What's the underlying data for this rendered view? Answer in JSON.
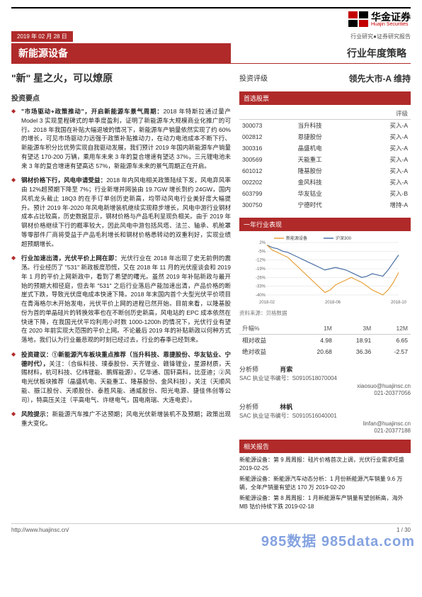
{
  "header": {
    "logo_cn": "华金证券",
    "logo_en": "Huajin Securities",
    "logo_color1": "#c40000",
    "logo_color2": "#000000"
  },
  "datebar": {
    "date": "2019 年 02 月 28 日",
    "sub": "行业研究●证券研究报告"
  },
  "titlebar": {
    "left": "新能源设备",
    "right": "行业年度策略"
  },
  "big_title": "\"新\" 星之火，可以燎原",
  "section_label": "投资要点",
  "points": [
    {
      "bold": "\"市场驱动+政策推动\"，开启新能源车景气周期：",
      "text": "2018 年特斯拉通过量产 Model 3 实现里程碑式的单季度盈利，证明了新能源车大规模商业化推广的可行。2018 年我国在补贴大幅退坡的情况下，新能源车产销量依然实现了约 60%的增长，可见市场驱动力远强于政策补贴推动力，在动力电池成本不断下行、新能源车积分比优势实现自我驱动发展，我们预计 2019 年国内新能源车产销量有望达 170-200 万辆，乘用车未来 3 年的复合增速有望达 37%，三元锂电池未来 3 年的复合增速有望高达 57%，新能源车未来的景气周期正在开启。"
    },
    {
      "bold": "钢材价格下行，风电申请受益：",
      "text": "2018 年内风电相关政策陆续下发，风电弃风率由 12%超预期下降至 7%；行业新增并网装由 19.7GW 增长到约 24GW，国内风机龙头截止 18Q3 的在手订单创历史新高，均带动风电行业美好度大幅提升。预计 2019 年-2020 年风电新增装机继续实现稳步增长，风电中游行业钢材成本占比较高，历史数据显示，钢材价格与产品毛利呈现负相关。由于 2019 年钢材价格继续下行的概率较大，因此风电中游包括风塔、法兰、轴承、机舱罩等零部件厂商将受益于产品毛利增长和钢材价格悉转动的双重利好，实现业绩超预期增长。"
    },
    {
      "bold": "行业加速出清，光伏平价上网在即：",
      "text": "光伏行业在 2018 年出现了史无前例的震荡。行业经历了 \"531\" 新政板度恐慌，又在 2018 年 11 月的光伏座谈会和 2019 年 1 月的平价上网新政中，看到了希望的曙光。虽然 2019 年补贴新政与最开始的预期大相径庭，但去年 \"531\" 之后行业落后产能加速出清，产品价格的断崖式下跌，导致光伏度电成本快速下降。2018 年末国内首个大型光伏平价项目在青海格尔木开始发电，光伏平价上网的进程已然开始。目前来看，以隆基股份为首的单晶硅片的转换效率也在不断创历史新高，风电站的 EPC 成本依然在快速下降，在我国光伏平均利用小时数 1000-1200h 的情况下，光伏行业有望在 2020 年前实现大范围的平价上网。不论最后 2019 年的补贴新政以何种方式落地，我们认为行业最悲观的时刻已经过去，行业的春季已经到来。"
    },
    {
      "bold": "投资建议：①新能源汽车板块重点推荐（当升科技、恩捷股份、华友钴业、宁德时代），",
      "text": "关注：（合纵科技、璞泰股份、天齐锂业、赣锋锂业，星源材质，天赐材料，杭可科技、亿纬锂能、鹏辉能源），亿华通、国轩高科，比亚迪；②风电光伏板块推荐（晶盛机电、天能重工、隆基股份、金风科技），关注（天顺风能、振江股份、天顺股份、泰胜风能、通威股份、阳光电源、捷佳伟创等公司），特高压关注（平高电气、许继电气，国电南瑞、大连电瓷）。"
    },
    {
      "bold": "风险提示：",
      "text": "新能源汽车推广不达预期；风电光伏新增装机不及预期；政策出现重大变化。",
      "risk": true
    }
  ],
  "rating": {
    "label": "投资评级",
    "value": "领先大市-A 维持"
  },
  "stocks": {
    "header": "首选股票",
    "cols": [
      "",
      "",
      "评级"
    ],
    "rows": [
      [
        "300073",
        "当升科技",
        "买入-A"
      ],
      [
        "002812",
        "恩捷股份",
        "买入-A"
      ],
      [
        "300316",
        "晶盛机电",
        "买入-A"
      ],
      [
        "300569",
        "天能重工",
        "买入-A"
      ],
      [
        "601012",
        "隆基股份",
        "买入-A"
      ],
      [
        "002202",
        "金风科技",
        "买入-A"
      ],
      [
        "603799",
        "华友钴业",
        "买入-B"
      ],
      [
        "300750",
        "宁德时代",
        "增持-A"
      ]
    ]
  },
  "perf": {
    "header": "一年行业表现",
    "legend": [
      "新能源设备",
      "沪深300"
    ],
    "colors": {
      "series1": "#e8a33d",
      "series2": "#4a6fa5",
      "grid": "#dddddd",
      "axis": "#888",
      "bg": "#ffffff"
    },
    "x_labels": [
      "2018-02",
      "2018-06",
      "2018-10"
    ],
    "y_ticks": [
      "2%",
      "-5%",
      "-12%",
      "-19%",
      "-26%",
      "-33%",
      "-40%"
    ],
    "ylim": [
      -40,
      2
    ],
    "series1": [
      0,
      -4,
      -6,
      -8,
      -10,
      -14,
      -18,
      -22,
      -26,
      -30,
      -34,
      -38,
      -36,
      -32,
      -30,
      -28,
      -26,
      -28,
      -30,
      -33,
      -36,
      -38,
      -40,
      -36,
      -30,
      -22
    ],
    "series2": [
      0,
      -2,
      -3,
      -5,
      -6,
      -8,
      -10,
      -12,
      -14,
      -16,
      -18,
      -20,
      -19,
      -18,
      -19,
      -20,
      -22,
      -24,
      -26,
      -25,
      -23,
      -24,
      -25,
      -20,
      -14,
      -8
    ],
    "source": "资料来源：贝格数据"
  },
  "returns": {
    "cols": [
      "升幅%",
      "1M",
      "3M",
      "12M"
    ],
    "rows": [
      [
        "相对收益",
        "4.98",
        "18.91",
        "6.65"
      ],
      [
        "绝对收益",
        "20.68",
        "36.36",
        "-2.57"
      ]
    ]
  },
  "analysts": [
    {
      "role": "分析师",
      "name": "肖索",
      "sac": "SAC 执业证书编号：S0910518070004",
      "email": "xiaosuo@huajinsc.cn",
      "tel": "021-20377056"
    },
    {
      "role": "分析师",
      "name": "林帆",
      "sac": "SAC 执业证书编号：S0910516040001",
      "email": "linfan@huajinsc.cn",
      "tel": "021-20377188"
    }
  ],
  "related": {
    "header": "相关报告",
    "items": [
      "新能源设备：第 9 周周报：硅片价格首次上调，光伏行业需求旺盛 2019-02-25",
      "新能源设备：新能源汽车动态分析：1 月份新能源汽车销量 9.6 万辆，全年产销量有望达 170 万 2019-02-20",
      "新能源设备：第 8 周周报：1 月新能源车产销量有望创新高，海外 MB 钴价持续下跌 2019-02-18"
    ]
  },
  "footer": {
    "url": "http://www.huajinsc.cn/",
    "pg": "1 / 30"
  },
  "watermark": "985数据 985data.com"
}
